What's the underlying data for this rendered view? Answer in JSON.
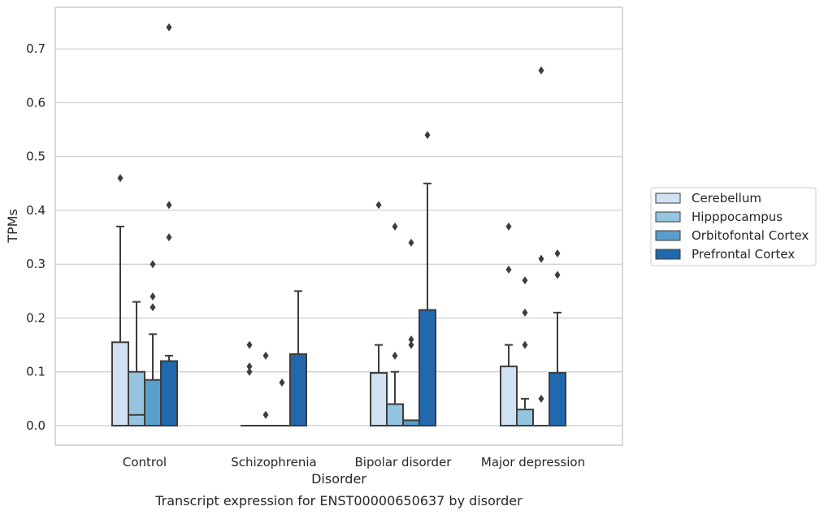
{
  "chart_data": {
    "type": "box",
    "title": "Transcript expression for ENST00000650637 by disorder",
    "xlabel": "Disorder",
    "ylabel": "TPMs",
    "ylim": [
      -0.035,
      0.78
    ],
    "yticks": [
      "0.0",
      "0.1",
      "0.2",
      "0.3",
      "0.4",
      "0.5",
      "0.6",
      "0.7"
    ],
    "categories": [
      "Control",
      "Schizophrenia",
      "Bipolar disorder",
      "Major depression"
    ],
    "grid": true,
    "legend_position": "right",
    "series": [
      {
        "name": "Cerebellum",
        "color": "#d0e1f2",
        "boxes": [
          {
            "q1": 0.0,
            "median": 0.0,
            "q3": 0.155,
            "whisker_low": 0.0,
            "whisker_high": 0.37,
            "outliers": [
              0.46
            ]
          },
          {
            "q1": 0.0,
            "median": 0.0,
            "q3": 0.0,
            "whisker_low": 0.0,
            "whisker_high": 0.0,
            "outliers": [
              0.1,
              0.11,
              0.15
            ]
          },
          {
            "q1": 0.0,
            "median": 0.0,
            "q3": 0.098,
            "whisker_low": 0.0,
            "whisker_high": 0.15,
            "outliers": [
              0.41
            ]
          },
          {
            "q1": 0.0,
            "median": 0.0,
            "q3": 0.11,
            "whisker_low": 0.0,
            "whisker_high": 0.15,
            "outliers": [
              0.29,
              0.37
            ]
          }
        ]
      },
      {
        "name": "Hipppocampus",
        "color": "#94c4df",
        "boxes": [
          {
            "q1": 0.0,
            "median": 0.02,
            "q3": 0.1,
            "whisker_low": 0.0,
            "whisker_high": 0.23,
            "outliers": []
          },
          {
            "q1": 0.0,
            "median": 0.0,
            "q3": 0.0,
            "whisker_low": 0.0,
            "whisker_high": 0.0,
            "outliers": [
              0.02,
              0.13
            ]
          },
          {
            "q1": 0.0,
            "median": 0.0,
            "q3": 0.04,
            "whisker_low": 0.0,
            "whisker_high": 0.1,
            "outliers": [
              0.13,
              0.37
            ]
          },
          {
            "q1": 0.0,
            "median": 0.0,
            "q3": 0.03,
            "whisker_low": 0.0,
            "whisker_high": 0.05,
            "outliers": [
              0.15,
              0.21,
              0.27
            ]
          }
        ]
      },
      {
        "name": "Orbitofontal Cortex",
        "color": "#5a9fcc",
        "boxes": [
          {
            "q1": 0.0,
            "median": 0.0,
            "q3": 0.085,
            "whisker_low": 0.0,
            "whisker_high": 0.17,
            "outliers": [
              0.22,
              0.24,
              0.3
            ]
          },
          {
            "q1": 0.0,
            "median": 0.0,
            "q3": 0.0,
            "whisker_low": 0.0,
            "whisker_high": 0.0,
            "outliers": [
              0.08
            ]
          },
          {
            "q1": 0.0,
            "median": 0.0,
            "q3": 0.01,
            "whisker_low": 0.0,
            "whisker_high": 0.01,
            "outliers": [
              0.15,
              0.16,
              0.34
            ]
          },
          {
            "q1": 0.0,
            "median": 0.0,
            "q3": 0.0,
            "whisker_low": 0.0,
            "whisker_high": 0.0,
            "outliers": [
              0.05,
              0.31,
              0.66
            ]
          }
        ]
      },
      {
        "name": "Prefrontal Cortex",
        "color": "#2268ad",
        "boxes": [
          {
            "q1": 0.0,
            "median": 0.0,
            "q3": 0.12,
            "whisker_low": 0.0,
            "whisker_high": 0.13,
            "outliers": [
              0.35,
              0.41,
              0.74
            ]
          },
          {
            "q1": 0.0,
            "median": 0.0,
            "q3": 0.133,
            "whisker_low": 0.0,
            "whisker_high": 0.25,
            "outliers": []
          },
          {
            "q1": 0.0,
            "median": 0.0,
            "q3": 0.215,
            "whisker_low": 0.0,
            "whisker_high": 0.45,
            "outliers": [
              0.54
            ]
          },
          {
            "q1": 0.0,
            "median": 0.0,
            "q3": 0.098,
            "whisker_low": 0.0,
            "whisker_high": 0.21,
            "outliers": [
              0.28,
              0.32
            ]
          }
        ]
      }
    ]
  }
}
